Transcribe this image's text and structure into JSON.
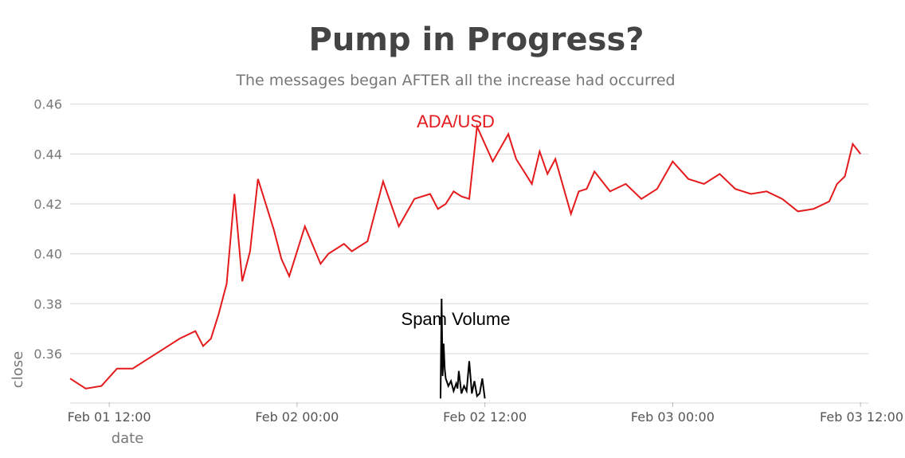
{
  "colors": {
    "ada": "#e41a1c",
    "spam": "#000000",
    "grid": "#dddddd",
    "title": "#444444"
  },
  "chart_data": {
    "type": "line",
    "title": "Pump in Progress?",
    "subtitle": "The messages began AFTER all the increase had occurred",
    "xlabel": "date",
    "ylabel": "close",
    "ylim": [
      0.3405,
      0.4615
    ],
    "yticks": [
      0.36,
      0.38,
      0.4,
      0.42,
      0.44,
      0.46
    ],
    "ytick_labels": [
      "0.36",
      "0.38",
      "0.40",
      "0.42",
      "0.44",
      "0.46"
    ],
    "xlim": [
      "2018-02-01 09:30",
      "2018-02-03 12:30"
    ],
    "xticks": [
      "2018-02-01 12:00",
      "2018-02-02 00:00",
      "2018-02-02 12:00",
      "2018-02-03 00:00",
      "2018-02-03 12:00"
    ],
    "xtick_labels": [
      "Feb 01 12:00",
      "Feb 02 00:00",
      "Feb 02 12:00",
      "Feb 03 00:00",
      "Feb 03 12:00"
    ],
    "grid": true,
    "series": [
      {
        "name": "ADA/USD",
        "x": [
          "2018-02-01 09:30",
          "2018-02-01 10:30",
          "2018-02-01 11:30",
          "2018-02-01 12:30",
          "2018-02-01 13:30",
          "2018-02-01 14:30",
          "2018-02-01 15:30",
          "2018-02-01 16:30",
          "2018-02-01 17:30",
          "2018-02-01 18:00",
          "2018-02-01 18:30",
          "2018-02-01 19:00",
          "2018-02-01 19:30",
          "2018-02-01 20:00",
          "2018-02-01 20:30",
          "2018-02-01 21:00",
          "2018-02-01 21:30",
          "2018-02-01 22:30",
          "2018-02-01 23:00",
          "2018-02-01 23:30",
          "2018-02-02 00:30",
          "2018-02-02 01:30",
          "2018-02-02 02:00",
          "2018-02-02 03:00",
          "2018-02-02 03:30",
          "2018-02-02 04:30",
          "2018-02-02 05:30",
          "2018-02-02 06:30",
          "2018-02-02 07:30",
          "2018-02-02 08:30",
          "2018-02-02 09:00",
          "2018-02-02 09:30",
          "2018-02-02 10:00",
          "2018-02-02 10:30",
          "2018-02-02 11:00",
          "2018-02-02 11:30",
          "2018-02-02 12:30",
          "2018-02-02 13:30",
          "2018-02-02 14:00",
          "2018-02-02 15:00",
          "2018-02-02 15:30",
          "2018-02-02 16:00",
          "2018-02-02 16:30",
          "2018-02-02 17:30",
          "2018-02-02 18:00",
          "2018-02-02 18:30",
          "2018-02-02 19:00",
          "2018-02-02 20:00",
          "2018-02-02 21:00",
          "2018-02-02 22:00",
          "2018-02-02 23:00",
          "2018-02-03 00:00",
          "2018-02-03 01:00",
          "2018-02-03 02:00",
          "2018-02-03 03:00",
          "2018-02-03 04:00",
          "2018-02-03 05:00",
          "2018-02-03 06:00",
          "2018-02-03 07:00",
          "2018-02-03 08:00",
          "2018-02-03 09:00",
          "2018-02-03 10:00",
          "2018-02-03 10:30",
          "2018-02-03 11:00",
          "2018-02-03 11:30",
          "2018-02-03 12:00"
        ],
        "y": [
          0.35,
          0.346,
          0.347,
          0.354,
          0.354,
          0.358,
          0.362,
          0.366,
          0.369,
          0.363,
          0.366,
          0.376,
          0.388,
          0.424,
          0.389,
          0.401,
          0.43,
          0.41,
          0.398,
          0.391,
          0.411,
          0.396,
          0.4,
          0.404,
          0.401,
          0.405,
          0.429,
          0.411,
          0.422,
          0.424,
          0.418,
          0.42,
          0.425,
          0.423,
          0.422,
          0.451,
          0.437,
          0.448,
          0.438,
          0.428,
          0.441,
          0.432,
          0.438,
          0.416,
          0.425,
          0.426,
          0.433,
          0.425,
          0.428,
          0.422,
          0.426,
          0.437,
          0.43,
          0.428,
          0.432,
          0.426,
          0.424,
          0.425,
          0.422,
          0.417,
          0.418,
          0.421,
          0.428,
          0.431,
          0.444,
          0.44
        ]
      },
      {
        "name": "Spam Volume",
        "x": [
          "2018-02-02 09:10",
          "2018-02-02 09:14",
          "2018-02-02 09:18",
          "2018-02-02 09:22",
          "2018-02-02 09:26",
          "2018-02-02 09:30",
          "2018-02-02 09:40",
          "2018-02-02 09:50",
          "2018-02-02 10:00",
          "2018-02-02 10:10",
          "2018-02-02 10:15",
          "2018-02-02 10:20",
          "2018-02-02 10:30",
          "2018-02-02 10:40",
          "2018-02-02 10:50",
          "2018-02-02 11:00",
          "2018-02-02 11:10",
          "2018-02-02 11:20",
          "2018-02-02 11:30",
          "2018-02-02 11:40",
          "2018-02-02 11:50",
          "2018-02-02 12:00"
        ],
        "y": [
          0.342,
          0.382,
          0.351,
          0.364,
          0.354,
          0.35,
          0.347,
          0.349,
          0.345,
          0.348,
          0.346,
          0.353,
          0.344,
          0.347,
          0.345,
          0.357,
          0.344,
          0.349,
          0.343,
          0.344,
          0.35,
          0.342
        ]
      }
    ],
    "annotations": [
      "ADA/USD",
      "Spam Volume"
    ]
  }
}
